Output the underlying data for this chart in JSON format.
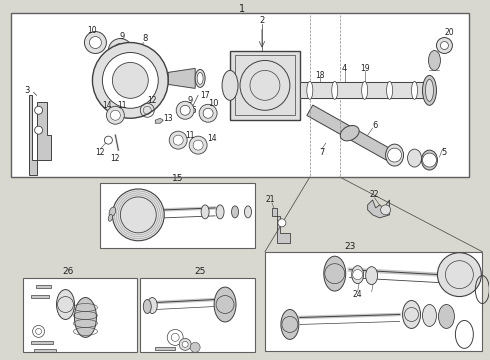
{
  "bg": "#ffffff",
  "fig_bg": "#d8d8d0",
  "lc": "#404040",
  "bc": "#606060",
  "tc": "#202020",
  "gray_fill": "#c8c8c8",
  "light_gray": "#e0e0e0",
  "dark_gray": "#888888"
}
